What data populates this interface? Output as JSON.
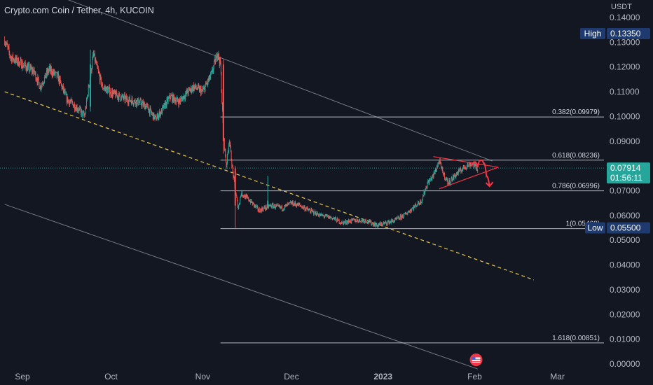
{
  "header": {
    "title": "Crypto.com Coin / Tether, 4h, KUCOIN",
    "currency": "USDT"
  },
  "colors": {
    "background": "#131722",
    "up": "#26a69a",
    "down": "#ef5350",
    "fib": "#d1d4dc",
    "dashed": "#f2d04b",
    "channel": "#9598a1",
    "annotation": "#f23645",
    "price_badge": "#26a69a",
    "high_low_badge": "#1e3a6e"
  },
  "icons": {
    "event_marker": "us-flag-icon"
  },
  "chart_data": {
    "type": "candlestick",
    "symbol": "CRO/USDT",
    "timeframe": "4h",
    "exchange": "KUCOIN",
    "y_unit": "USDT",
    "ylim": [
      -0.001,
      0.144
    ],
    "x_tick_labels": [
      "Sep",
      "Oct",
      "Nov",
      "Dec",
      "2023",
      "Feb",
      "Mar"
    ],
    "y_tick_labels": [
      "0.14000",
      "0.13000",
      "0.12000",
      "0.11000",
      "0.10000",
      "0.09000",
      "0.08000",
      "0.07000",
      "0.06000",
      "0.05000",
      "0.04000",
      "0.03000",
      "0.02000",
      "0.01000",
      "0.00000"
    ],
    "y_ticks": [
      0.14,
      0.13,
      0.12,
      0.11,
      0.1,
      0.09,
      0.08,
      0.07,
      0.06,
      0.05,
      0.04,
      0.03,
      0.02,
      0.01,
      0.0
    ],
    "current_price": {
      "value": "0.07914",
      "countdown": "01:56:11"
    },
    "high": {
      "label": "High",
      "value": "0.13350"
    },
    "low": {
      "label": "Low",
      "value": "0.05500"
    },
    "fib_levels": [
      {
        "label": "0.382(0.09979)",
        "price": 0.09979
      },
      {
        "label": "0.618(0.08236)",
        "price": 0.08236
      },
      {
        "label": "0.786(0.06996)",
        "price": 0.06996
      },
      {
        "label": "1(0.05468)",
        "price": 0.05468
      },
      {
        "label": "1.618(0.00851)",
        "price": 0.00851
      }
    ],
    "price_path": [
      [
        "2022-08-26",
        0.131
      ],
      [
        "2022-08-28",
        0.124
      ],
      [
        "2022-09-01",
        0.121
      ],
      [
        "2022-09-05",
        0.118
      ],
      [
        "2022-09-07",
        0.112
      ],
      [
        "2022-09-10",
        0.119
      ],
      [
        "2022-09-13",
        0.116
      ],
      [
        "2022-09-16",
        0.107
      ],
      [
        "2022-09-20",
        0.103
      ],
      [
        "2022-09-22",
        0.1
      ],
      [
        "2022-09-25",
        0.125
      ],
      [
        "2022-09-28",
        0.112
      ],
      [
        "2022-10-02",
        0.109
      ],
      [
        "2022-10-06",
        0.107
      ],
      [
        "2022-10-10",
        0.106
      ],
      [
        "2022-10-13",
        0.104
      ],
      [
        "2022-10-16",
        0.099
      ],
      [
        "2022-10-18",
        0.102
      ],
      [
        "2022-10-21",
        0.108
      ],
      [
        "2022-10-24",
        0.106
      ],
      [
        "2022-10-27",
        0.11
      ],
      [
        "2022-10-29",
        0.112
      ],
      [
        "2022-11-01",
        0.11
      ],
      [
        "2022-11-04",
        0.117
      ],
      [
        "2022-11-06",
        0.126
      ],
      [
        "2022-11-07",
        0.121
      ],
      [
        "2022-11-08",
        0.092
      ],
      [
        "2022-11-09",
        0.08
      ],
      [
        "2022-11-10",
        0.091
      ],
      [
        "2022-11-11",
        0.079
      ],
      [
        "2022-11-12",
        0.07
      ],
      [
        "2022-11-13",
        0.063
      ],
      [
        "2022-11-14",
        0.069
      ],
      [
        "2022-11-17",
        0.066
      ],
      [
        "2022-11-20",
        0.062
      ],
      [
        "2022-11-24",
        0.064
      ],
      [
        "2022-11-28",
        0.063
      ],
      [
        "2022-12-01",
        0.065
      ],
      [
        "2022-12-04",
        0.064
      ],
      [
        "2022-12-07",
        0.062
      ],
      [
        "2022-12-11",
        0.06
      ],
      [
        "2022-12-15",
        0.059
      ],
      [
        "2022-12-18",
        0.057
      ],
      [
        "2022-12-22",
        0.058
      ],
      [
        "2022-12-26",
        0.058
      ],
      [
        "2022-12-30",
        0.056
      ],
      [
        "2023-01-02",
        0.057
      ],
      [
        "2023-01-05",
        0.058
      ],
      [
        "2023-01-08",
        0.06
      ],
      [
        "2023-01-11",
        0.063
      ],
      [
        "2023-01-14",
        0.066
      ],
      [
        "2023-01-16",
        0.073
      ],
      [
        "2023-01-18",
        0.076
      ],
      [
        "2023-01-20",
        0.082
      ],
      [
        "2023-01-21",
        0.078
      ],
      [
        "2023-01-23",
        0.073
      ],
      [
        "2023-01-26",
        0.077
      ],
      [
        "2023-01-29",
        0.08
      ],
      [
        "2023-01-31",
        0.081
      ],
      [
        "2023-02-02",
        0.079
      ]
    ],
    "big_candles": [
      [
        "2022-09-24",
        0.104,
        0.127,
        0.102,
        0.121
      ],
      [
        "2022-11-08",
        0.121,
        0.123,
        0.085,
        0.09
      ],
      [
        "2022-11-12",
        0.079,
        0.08,
        0.055,
        0.064
      ],
      [
        "2022-11-23",
        0.064,
        0.076,
        0.063,
        0.066
      ]
    ],
    "channel_lines": [
      {
        "points": [
          [
            "2022-08-28",
            0.156
          ],
          [
            "2023-02-07",
            0.082
          ]
        ],
        "style": "solid"
      },
      {
        "points": [
          [
            "2022-08-26",
            0.0645
          ],
          [
            "2023-02-02",
            -0.002
          ]
        ],
        "style": "solid"
      },
      {
        "points": [
          [
            "2022-08-26",
            0.11
          ],
          [
            "2023-02-21",
            0.034
          ]
        ],
        "style": "dashed"
      }
    ],
    "triangle": {
      "upper": [
        [
          "2023-01-18",
          0.0838
        ],
        [
          "2023-02-09",
          0.0795
        ]
      ],
      "lower": [
        [
          "2023-01-20",
          0.0708
        ],
        [
          "2023-02-09",
          0.0795
        ]
      ]
    },
    "projection": [
      [
        "2023-01-31",
        0.0798
      ],
      [
        "2023-02-01",
        0.0815
      ],
      [
        "2023-02-02",
        0.0795
      ],
      [
        "2023-02-03",
        0.0822
      ],
      [
        "2023-02-04",
        0.0812
      ],
      [
        "2023-02-05",
        0.0758
      ],
      [
        "2023-02-06",
        0.0718
      ]
    ],
    "event_marker_date": "2023-02-01"
  }
}
